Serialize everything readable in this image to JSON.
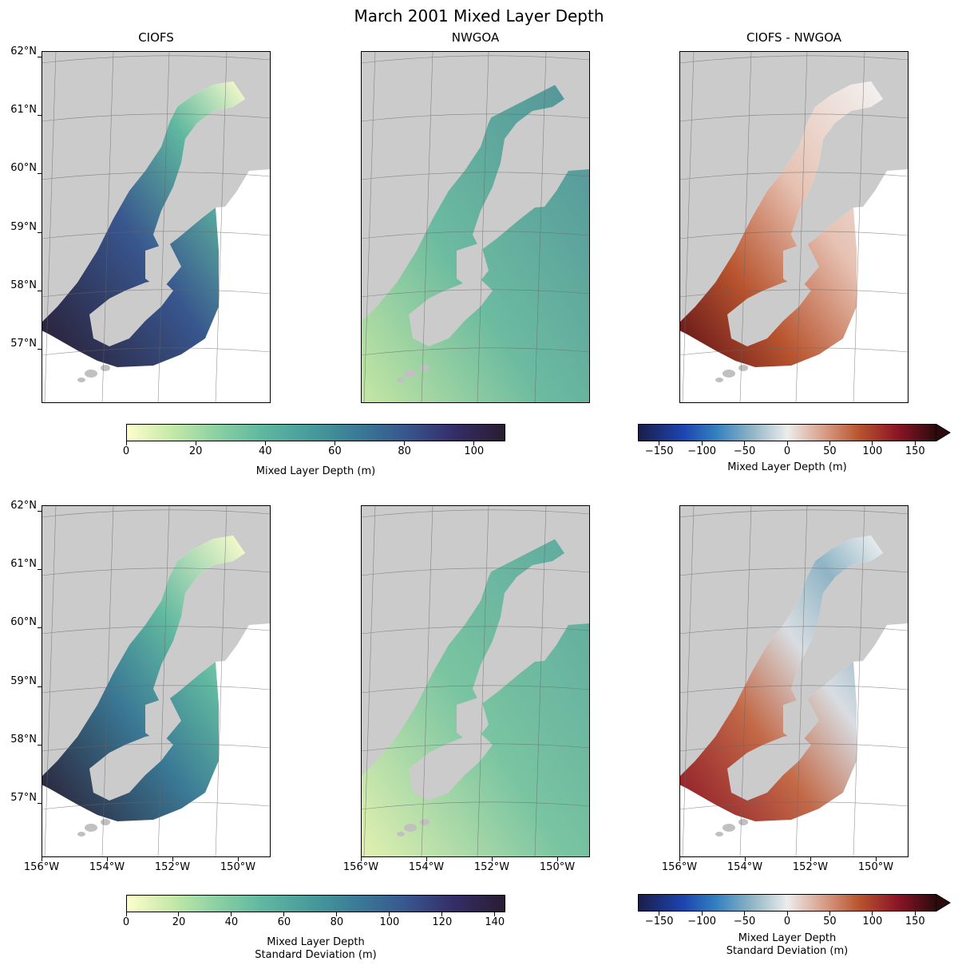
{
  "figure": {
    "title": "March 2001 Mixed Layer Depth"
  },
  "columns": [
    {
      "title": "CIOFS"
    },
    {
      "title": "NWGOA"
    },
    {
      "title": "CIOFS - NWGOA"
    }
  ],
  "lat_ticks": [
    "62°N",
    "61°N",
    "60°N",
    "59°N",
    "58°N",
    "57°N"
  ],
  "lon_ticks": [
    "156°W",
    "154°W",
    "152°W",
    "150°W"
  ],
  "rows": [
    {
      "name": "mean",
      "colorbar_seq": {
        "label": "Mixed Layer Depth (m)",
        "ticks": [
          "0",
          "20",
          "40",
          "60",
          "80",
          "100"
        ],
        "range": [
          0,
          109
        ]
      },
      "colorbar_diff": {
        "label": "Mixed Layer Depth (m)",
        "ticks": [
          "−150",
          "−100",
          "−50",
          "0",
          "50",
          "100",
          "150"
        ],
        "range": [
          -175,
          175
        ]
      }
    },
    {
      "name": "std",
      "colorbar_seq": {
        "label_line1": "Mixed Layer Depth",
        "label_line2": "Standard Deviation (m)",
        "ticks": [
          "0",
          "20",
          "40",
          "60",
          "80",
          "100",
          "120",
          "140"
        ],
        "range": [
          0,
          144
        ]
      },
      "colorbar_diff": {
        "label_line1": "Mixed Layer Depth",
        "label_line2": "Standard Deviation (m)",
        "ticks": [
          "−150",
          "−100",
          "−50",
          "0",
          "50",
          "100",
          "150"
        ],
        "range": [
          -175,
          175
        ]
      }
    }
  ],
  "colors": {
    "land": "#cbcbcb",
    "ocean_fill": "#ffffff",
    "seq_low": "#fdfecc",
    "seq_mid": "#5fb7a0",
    "seq_high": "#291c31",
    "diff_low": "#1a1f4a",
    "diff_mid": "#ececec",
    "diff_high": "#2d0a0e"
  }
}
